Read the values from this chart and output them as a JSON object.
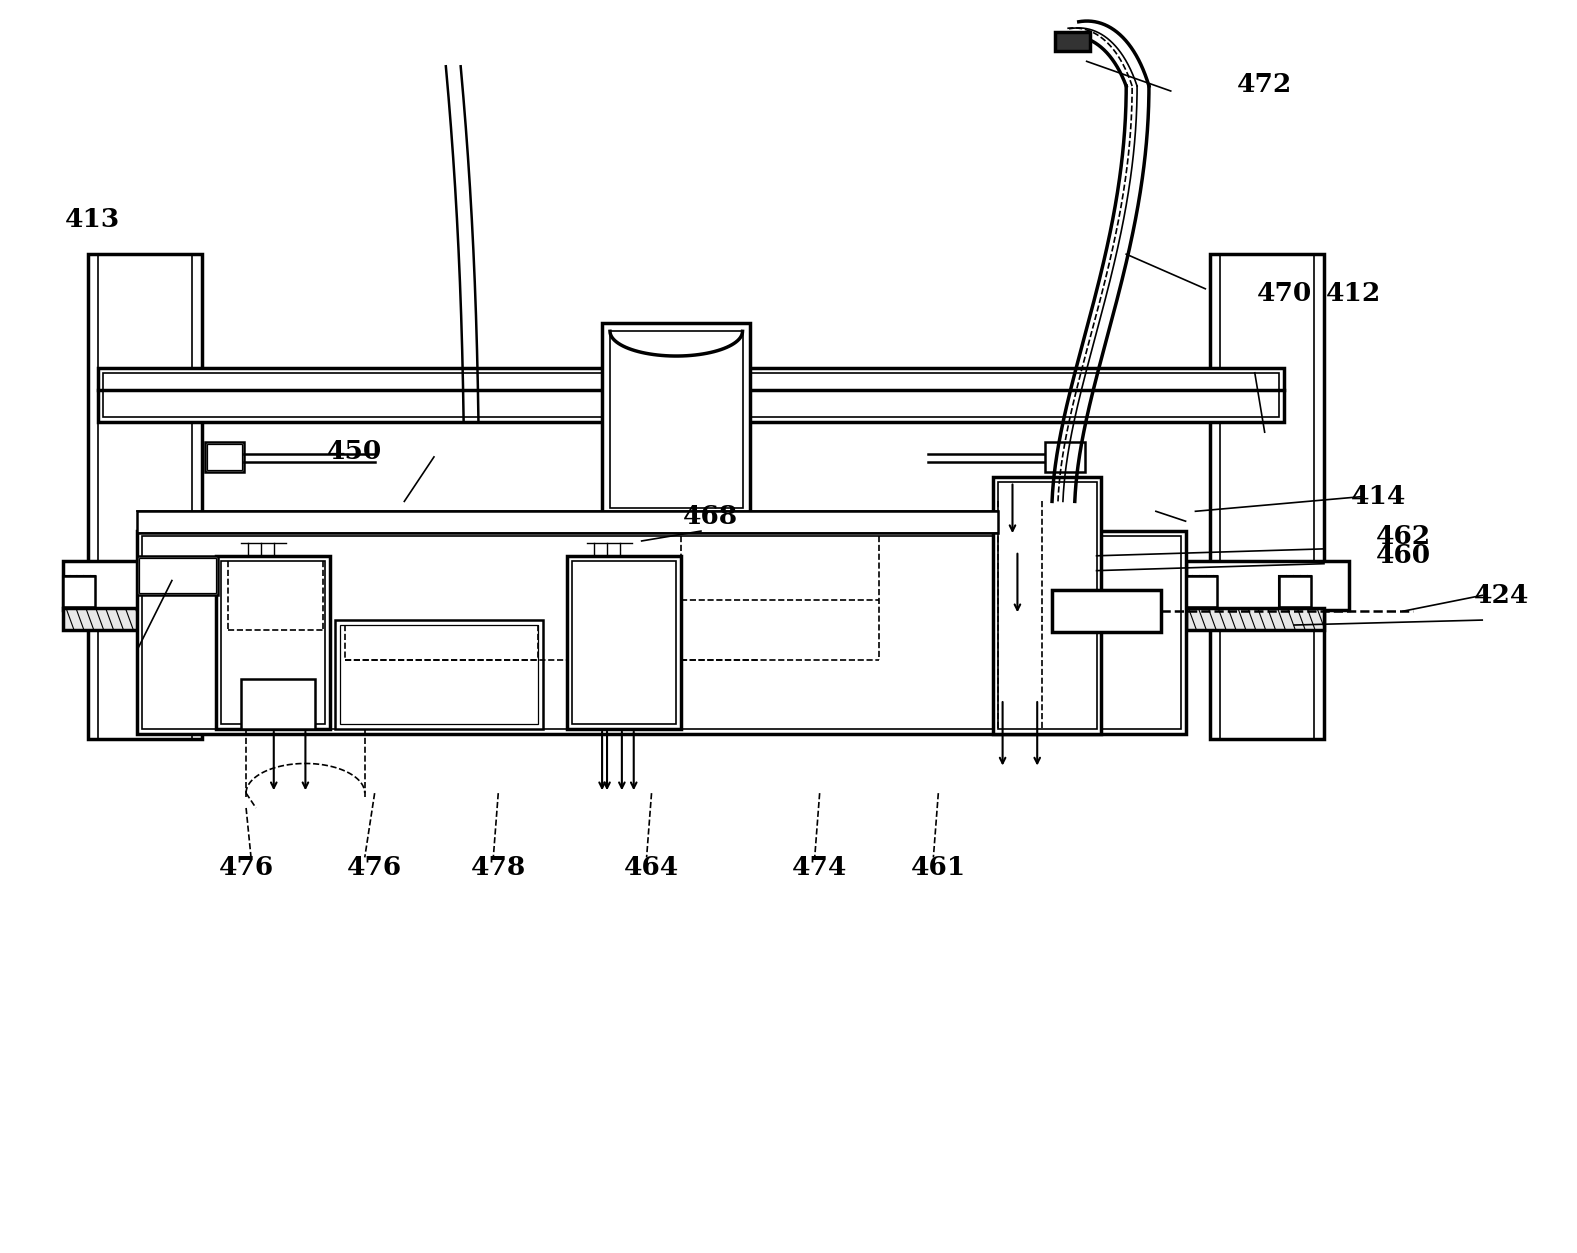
{
  "bg_color": "#ffffff",
  "line_color": "#000000",
  "fig_width": 15.77,
  "fig_height": 12.53,
  "label_fontsize": 19,
  "lw": 1.8,
  "lw2": 2.5,
  "lw1": 1.2,
  "lw0": 0.9
}
